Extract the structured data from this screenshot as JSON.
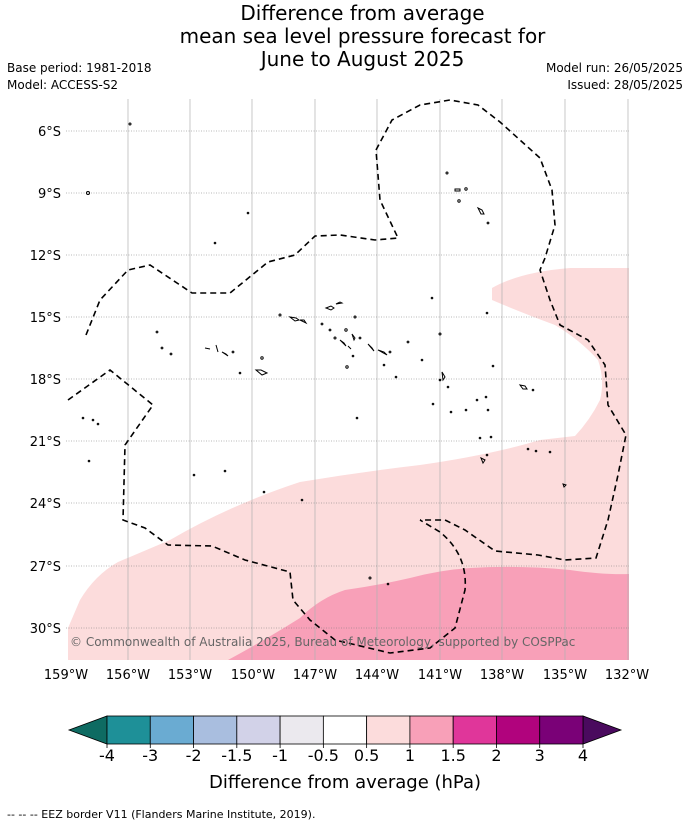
{
  "title": {
    "line1": "Difference from average",
    "line2": "mean sea level pressure forecast for",
    "line3": "June to August 2025"
  },
  "meta_left": {
    "base_period": "Base period: 1981-2018",
    "model": "Model: ACCESS-S2"
  },
  "meta_right": {
    "model_run": "Model run: 26/05/2025",
    "issued": "Issued: 28/05/2025"
  },
  "copyright": "© Commonwealth of Australia 2025, Bureau of Meteorology, supported by COSPPac",
  "map": {
    "lat_labels": [
      "6°S",
      "9°S",
      "12°S",
      "15°S",
      "18°S",
      "21°S",
      "24°S",
      "27°S",
      "30°S"
    ],
    "lon_labels": [
      "159°W",
      "156°W",
      "153°W",
      "150°W",
      "147°W",
      "144°W",
      "141°W",
      "138°W",
      "135°W",
      "132°W"
    ],
    "shading": [
      {
        "range": "0.5 to 1",
        "color": "#fcdcdc"
      },
      {
        "range": "1 to 1.5",
        "color": "#f8a0b8"
      }
    ]
  },
  "colorbar": {
    "label": "Difference from average (hPa)",
    "ticks": [
      "-4",
      "-3",
      "-2",
      "-1.5",
      "-1",
      "-0.5",
      "0.5",
      "1",
      "1.5",
      "2",
      "3",
      "4"
    ],
    "under_color": "#0e6b62",
    "over_color": "#4a0a5e",
    "colors": [
      "#1e9098",
      "#6aabd2",
      "#a9bedf",
      "#d2d2e8",
      "#ebe9ee",
      "#ffffff",
      "#fcdcdc",
      "#f8a0b8",
      "#e0369a",
      "#b1037d",
      "#7a0177"
    ]
  },
  "footer": "-- -- -- EEZ border V11 (Flanders Marine Institute, 2019)."
}
